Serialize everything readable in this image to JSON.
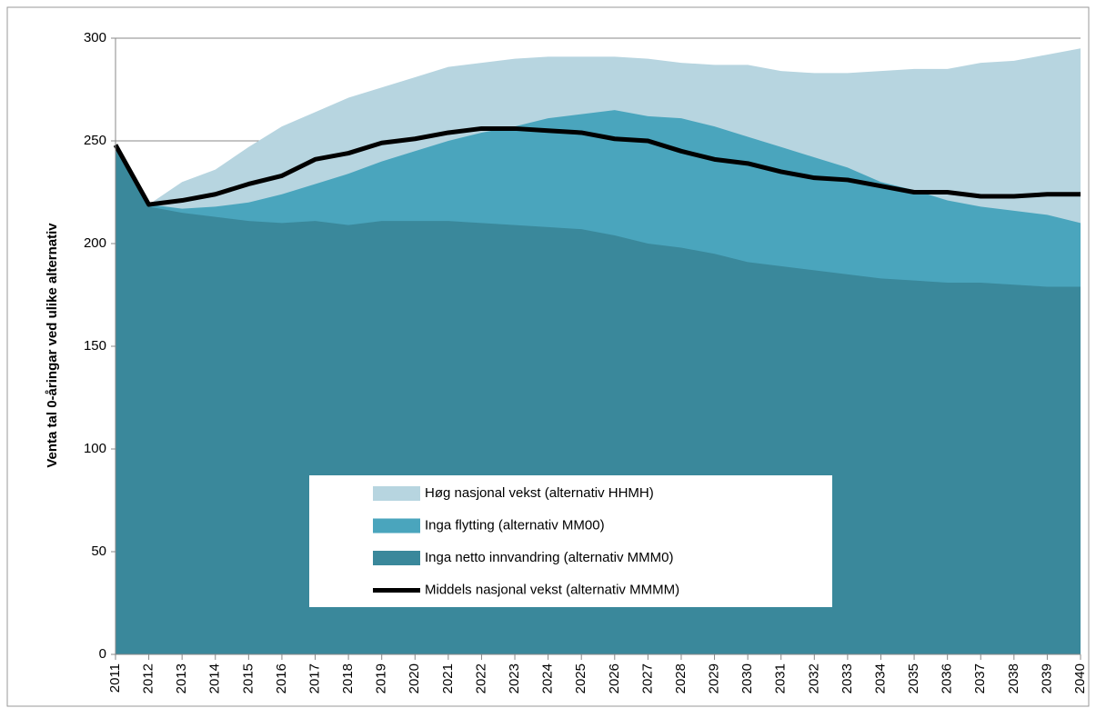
{
  "chart_data": {
    "type": "area",
    "y_label": "Venta tal 0-åringar ved ulike alternativ",
    "x": [
      2011,
      2012,
      2013,
      2014,
      2015,
      2016,
      2017,
      2018,
      2019,
      2020,
      2021,
      2022,
      2023,
      2024,
      2025,
      2026,
      2027,
      2028,
      2029,
      2030,
      2031,
      2032,
      2033,
      2034,
      2035,
      2036,
      2037,
      2038,
      2039,
      2040
    ],
    "xlim": [
      2011,
      2040
    ],
    "xticks": [
      2011,
      2012,
      2013,
      2014,
      2015,
      2016,
      2017,
      2018,
      2019,
      2020,
      2021,
      2022,
      2023,
      2024,
      2025,
      2026,
      2027,
      2028,
      2029,
      2030,
      2031,
      2032,
      2033,
      2034,
      2035,
      2036,
      2037,
      2038,
      2039,
      2040
    ],
    "ylim": [
      0,
      300
    ],
    "yticks": [
      0,
      50,
      100,
      150,
      200,
      250,
      300
    ],
    "grid": true,
    "series": [
      {
        "name": "Høg nasjonal vekst (alternativ HHMH)",
        "type": "area",
        "color": "#b7d5e0",
        "values": [
          248,
          219,
          230,
          236,
          247,
          257,
          264,
          271,
          276,
          281,
          286,
          288,
          290,
          291,
          291,
          291,
          290,
          288,
          287,
          287,
          284,
          283,
          283,
          284,
          285,
          285,
          288,
          289,
          292,
          295
        ]
      },
      {
        "name": "Inga flytting (alternativ MM00)",
        "type": "area",
        "color": "#4aa5bd",
        "values": [
          248,
          219,
          217,
          218,
          220,
          224,
          229,
          234,
          240,
          245,
          250,
          254,
          257,
          261,
          263,
          265,
          262,
          261,
          257,
          252,
          247,
          242,
          237,
          230,
          226,
          221,
          218,
          216,
          214,
          210
        ]
      },
      {
        "name": "Inga netto innvandring (alternativ MMM0)",
        "type": "area",
        "color": "#3a889b",
        "values": [
          248,
          218,
          215,
          213,
          211,
          210,
          211,
          209,
          211,
          211,
          211,
          210,
          209,
          208,
          207,
          204,
          200,
          198,
          195,
          191,
          189,
          187,
          185,
          183,
          182,
          181,
          181,
          180,
          179,
          179
        ]
      },
      {
        "name": "Middels nasjonal vekst (alternativ MMMM)",
        "type": "line",
        "color": "#000000",
        "values": [
          248,
          219,
          221,
          224,
          229,
          233,
          241,
          244,
          249,
          251,
          254,
          256,
          256,
          255,
          254,
          251,
          250,
          245,
          241,
          239,
          235,
          232,
          231,
          228,
          225,
          225,
          223,
          223,
          224,
          224
        ]
      }
    ]
  }
}
